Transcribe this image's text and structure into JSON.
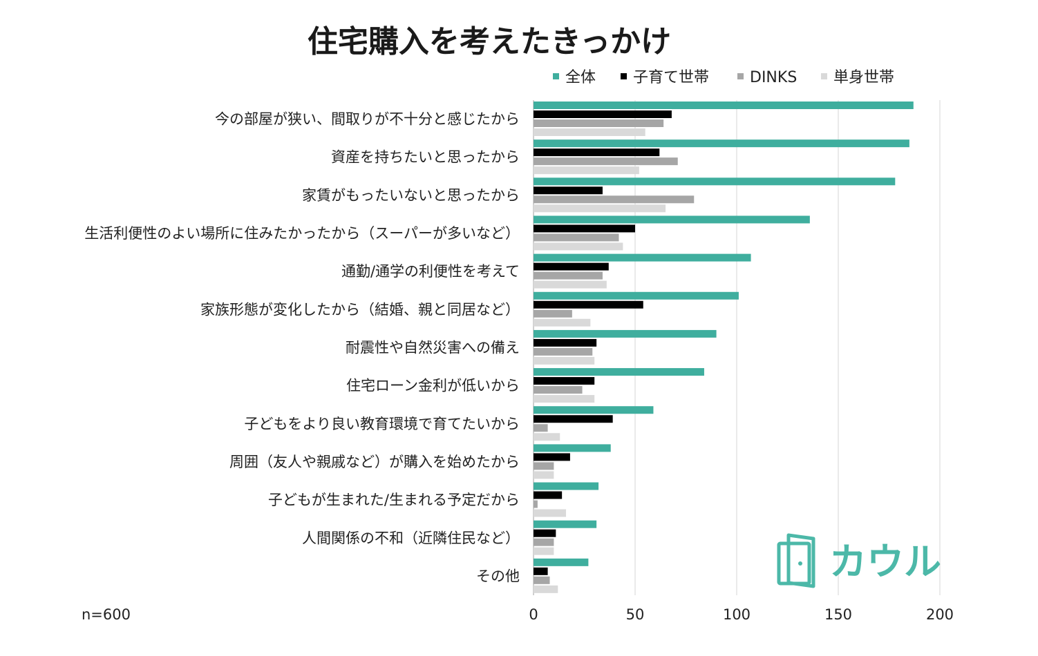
{
  "chart_data": {
    "type": "bar",
    "orientation": "horizontal",
    "title": "住宅購入を考えたきっかけ",
    "note": "n=600",
    "categories": [
      "今の部屋が狭い、間取りが不十分と感じたから",
      "資産を持ちたいと思ったから",
      "家賃がもったいないと思ったから",
      "生活利便性のよい場所に住みたかったから（スーパーが多いなど）",
      "通勤/通学の利便性を考えて",
      "家族形態が変化したから（結婚、親と同居など）",
      "耐震性や自然災害への備え",
      "住宅ローン金利が低いから",
      "子どもをより良い教育環境で育てたいから",
      "周囲（友人や親戚など）が購入を始めたから",
      "子どもが生まれた/生まれる予定だから",
      "人間関係の不和（近隣住民など）",
      "その他"
    ],
    "series": [
      {
        "name": "全体",
        "color": "#3fae9e",
        "values": [
          187,
          185,
          178,
          136,
          107,
          101,
          90,
          84,
          59,
          38,
          32,
          31,
          27
        ]
      },
      {
        "name": "子育て世帯",
        "color": "#000000",
        "values": [
          68,
          62,
          34,
          50,
          37,
          54,
          31,
          30,
          39,
          18,
          14,
          11,
          7
        ]
      },
      {
        "name": "DINKS",
        "color": "#a6a6a6",
        "values": [
          64,
          71,
          79,
          42,
          34,
          19,
          29,
          24,
          7,
          10,
          2,
          10,
          8
        ]
      },
      {
        "name": "単身世帯",
        "color": "#d9d9d9",
        "values": [
          55,
          52,
          65,
          44,
          36,
          28,
          30,
          30,
          13,
          10,
          16,
          10,
          12
        ]
      }
    ],
    "xlim": [
      0,
      200
    ],
    "xticks": [
      0,
      50,
      100,
      150,
      200
    ],
    "xtick_labels": [
      "0",
      "50",
      "100",
      "150",
      "200"
    ],
    "grid": true,
    "legend_position": "top"
  },
  "logo": {
    "text": "カウル",
    "color": "#4cb8a8"
  }
}
